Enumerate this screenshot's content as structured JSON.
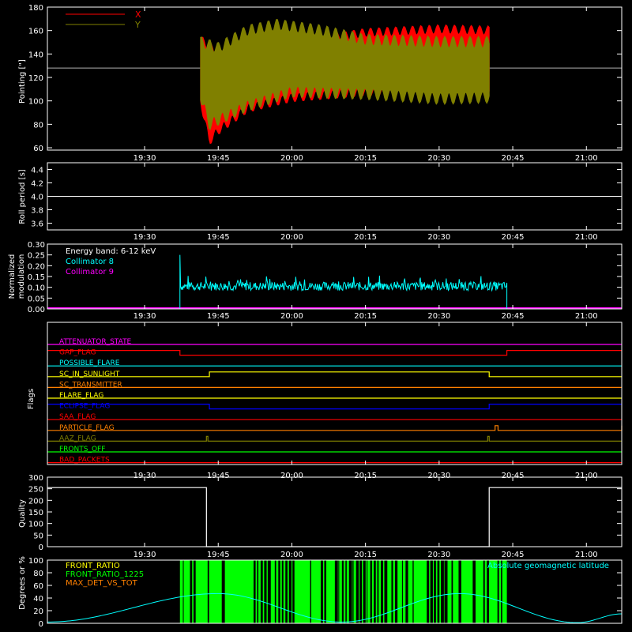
{
  "figure": {
    "x_ticks": [
      "19:30",
      "19:45",
      "20:00",
      "20:15",
      "20:30",
      "20:45",
      "21:00"
    ],
    "background": "#000000",
    "foreground": "#ffffff"
  },
  "chart_data": [
    {
      "type": "line",
      "ylabel": "Pointing [\"]",
      "ylim": [
        58,
        180
      ],
      "y_ticks": [
        60,
        80,
        100,
        120,
        140,
        160,
        180
      ],
      "legend": [
        {
          "label": "X",
          "color": "#ff0000"
        },
        {
          "label": "Y",
          "color": "#808000"
        }
      ],
      "reference_line": 128,
      "series": [
        {
          "name": "X",
          "color": "#ff0000",
          "upper_envelope": [
            [
              19.69,
              152
            ],
            [
              19.75,
              140
            ],
            [
              19.85,
              150
            ],
            [
              20.0,
              148
            ],
            [
              20.25,
              158
            ],
            [
              20.5,
              161
            ],
            [
              20.67,
              160
            ]
          ],
          "lower_envelope": [
            [
              19.69,
              100
            ],
            [
              19.72,
              66
            ],
            [
              19.75,
              75
            ],
            [
              19.85,
              94
            ],
            [
              20.0,
              103
            ],
            [
              20.25,
              108
            ],
            [
              20.5,
              110
            ],
            [
              20.67,
              111
            ]
          ]
        },
        {
          "name": "Y",
          "color": "#808000",
          "upper_envelope": [
            [
              19.69,
              150
            ],
            [
              19.75,
              145
            ],
            [
              19.85,
              160
            ],
            [
              19.95,
              165
            ],
            [
              20.1,
              160
            ],
            [
              20.25,
              152
            ],
            [
              20.5,
              150
            ],
            [
              20.67,
              150
            ]
          ],
          "lower_envelope": [
            [
              19.69,
              105
            ],
            [
              19.72,
              80
            ],
            [
              19.75,
              84
            ],
            [
              19.85,
              96
            ],
            [
              20.0,
              108
            ],
            [
              20.25,
              106
            ],
            [
              20.5,
              102
            ],
            [
              20.67,
              103
            ]
          ]
        }
      ]
    },
    {
      "type": "line",
      "ylabel": "Roll period [s]",
      "ylim": [
        3.5,
        4.5
      ],
      "y_ticks": [
        "3.6",
        "3.8",
        "4.0",
        "4.2",
        "4.4"
      ],
      "series": [
        {
          "name": "",
          "color": "#ffffff",
          "x": [
            19.17,
            21.12
          ],
          "y": [
            4.0,
            4.0
          ]
        }
      ]
    },
    {
      "type": "line",
      "ylabel_lines": [
        "Normalized",
        "modulation"
      ],
      "ylim": [
        0,
        0.3
      ],
      "y_ticks": [
        "0.00",
        "0.05",
        "0.10",
        "0.15",
        "0.20",
        "0.25",
        "0.30"
      ],
      "annotation": "Energy band: 6-12 keV",
      "legend": [
        {
          "label": "Collimator 8",
          "color": "#00ffff"
        },
        {
          "label": "Collimator 9",
          "color": "#ff00ff"
        }
      ],
      "series": [
        {
          "name": "Collimator 8",
          "color": "#00ffff",
          "x_start": 19.62,
          "x_end": 20.73,
          "level": 0.105,
          "spike_start": 0.25,
          "noise": 0.02
        },
        {
          "name": "Collimator 9",
          "color": "#ff00ff",
          "x": [
            19.17,
            21.12
          ],
          "y": [
            0.0,
            0.0
          ]
        }
      ]
    },
    {
      "type": "line",
      "ylabel": "Flags",
      "flags": [
        {
          "label": "ATTENUATOR_STATE",
          "color": "#ff00ff",
          "steps": [
            [
              19.17,
              0
            ]
          ]
        },
        {
          "label": "GAP_FLAG",
          "color": "#ff0000",
          "steps": [
            [
              19.17,
              1
            ],
            [
              19.62,
              0
            ],
            [
              20.73,
              1
            ]
          ]
        },
        {
          "label": "POSSIBLE_FLARE",
          "color": "#00ffff",
          "steps": [
            [
              19.17,
              0
            ]
          ]
        },
        {
          "label": "SC_IN_SUNLIGHT",
          "color": "#ffff00",
          "steps": [
            [
              19.17,
              0
            ],
            [
              19.72,
              1
            ],
            [
              20.67,
              0
            ]
          ]
        },
        {
          "label": "SC_TRANSMITTER",
          "color": "#ff8000",
          "steps": [
            [
              19.17,
              0
            ]
          ]
        },
        {
          "label": "FLARE_FLAG",
          "color": "#ffff00",
          "steps": [
            [
              19.17,
              0
            ]
          ]
        },
        {
          "label": "ECLIPSE_FLAG",
          "color": "#0000ff",
          "steps": [
            [
              19.17,
              1
            ],
            [
              19.72,
              0
            ],
            [
              20.67,
              1
            ]
          ]
        },
        {
          "label": "SAA_FLAG",
          "color": "#ff0000",
          "steps": [
            [
              19.17,
              0
            ]
          ]
        },
        {
          "label": "PARTICLE_FLAG",
          "color": "#ff8000",
          "steps": [
            [
              19.17,
              0
            ],
            [
              20.69,
              1
            ],
            [
              20.7,
              0
            ],
            [
              21.12,
              1
            ]
          ]
        },
        {
          "label": "AAZ_FLAG",
          "color": "#808000",
          "steps": [
            [
              19.17,
              0
            ],
            [
              19.71,
              1
            ],
            [
              19.715,
              0
            ],
            [
              20.665,
              1
            ],
            [
              20.67,
              0
            ]
          ]
        },
        {
          "label": "FRONTS_OFF",
          "color": "#00ff00",
          "steps": [
            [
              19.17,
              0
            ]
          ]
        },
        {
          "label": "BAD_PACKETS",
          "color": "#ff0000",
          "steps": [
            [
              19.17,
              0
            ]
          ]
        }
      ]
    },
    {
      "type": "line",
      "ylabel": "Quality",
      "ylim": [
        0,
        300
      ],
      "y_ticks": [
        0,
        50,
        100,
        150,
        200,
        250,
        300
      ],
      "series": [
        {
          "name": "",
          "color": "#ffffff",
          "x": [
            19.17,
            19.71,
            19.71,
            20.67,
            20.67,
            21.12
          ],
          "y": [
            255,
            255,
            0,
            0,
            255,
            255
          ]
        }
      ]
    },
    {
      "type": "line",
      "ylabel": "Degrees or %",
      "ylim": [
        0,
        100
      ],
      "y_ticks": [
        0,
        20,
        40,
        60,
        80,
        100
      ],
      "legend": [
        {
          "label": "FRONT_RATIO",
          "color": "#ffff00"
        },
        {
          "label": "FRONT_RATIO_1225",
          "color": "#00ff00"
        },
        {
          "label": "MAX_DET_VS_TOT",
          "color": "#ff8000"
        },
        {
          "label": "Absolute geomagnetic latitude",
          "color": "#00ffff"
        }
      ],
      "series": [
        {
          "name": "FRONT_RATIO_1225",
          "color": "#00ff00",
          "x_start": 19.62,
          "x_end": 20.73,
          "level": 100
        },
        {
          "name": "Absolute geomagnetic latitude",
          "color": "#00ffff",
          "x": [
            19.17,
            19.75,
            20.17,
            20.57,
            20.97,
            21.12
          ],
          "y": [
            2,
            47,
            2,
            47,
            1,
            15
          ]
        }
      ]
    }
  ]
}
